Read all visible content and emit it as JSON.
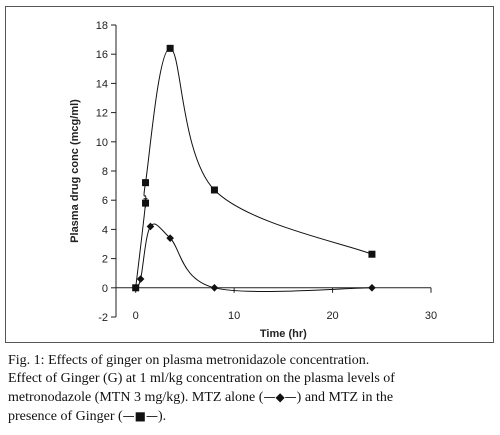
{
  "chart_data": {
    "type": "line",
    "xlabel": "Time (hr)",
    "ylabel": "Plasma drug conc (mcg/ml)",
    "xlim": [
      -2,
      30
    ],
    "ylim": [
      -2,
      18
    ],
    "xticks": [
      0,
      10,
      20,
      30
    ],
    "yticks": [
      -2,
      0,
      2,
      4,
      6,
      8,
      10,
      12,
      14,
      16,
      18
    ],
    "grid": false,
    "series": [
      {
        "marker": "square",
        "color": "#111111",
        "x": [
          0,
          1,
          1,
          3.5,
          8,
          24
        ],
        "y": [
          0,
          5.8,
          7.2,
          16.4,
          6.7,
          2.3
        ],
        "error": [
          0,
          0.3,
          0.2,
          0.2,
          0.1,
          0.1
        ]
      },
      {
        "marker": "diamond",
        "color": "#111111",
        "x": [
          0,
          0.5,
          1.5,
          3.5,
          8,
          24
        ],
        "y": [
          0,
          0.6,
          4.2,
          3.4,
          0,
          0
        ]
      }
    ]
  },
  "caption": {
    "line1": "Fig. 1: Effects of ginger on plasma metronidazole concentration.",
    "line2": "Effect of Ginger (G) at 1 ml/kg concentration on the plasma levels of",
    "line3_pre": "metronodazole (MTN 3 mg/kg). MTZ alone (",
    "line3_sym": "—◆—",
    "line3_post": ") and MTZ in the",
    "line4_pre": "presence of Ginger (",
    "line4_sym": "—■—",
    "line4_post": ")."
  }
}
